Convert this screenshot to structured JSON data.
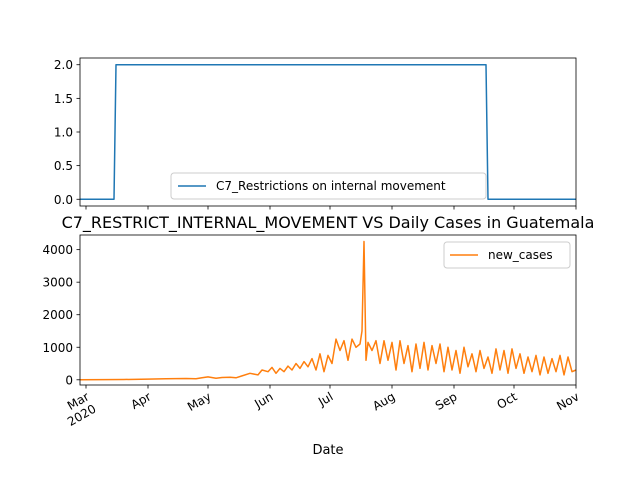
{
  "chart_data": [
    {
      "type": "line",
      "title": "",
      "xlabel": "",
      "ylabel": "",
      "ylim": [
        -0.1,
        2.1
      ],
      "yticks": [
        "0.0",
        "0.5",
        "1.0",
        "1.5",
        "2.0"
      ],
      "ytick_values": [
        0,
        0.5,
        1.0,
        1.5,
        2.0
      ],
      "grid": false,
      "legend": "lower center",
      "series": [
        {
          "name": "C7_Restrictions on internal movement",
          "color": "#1f77b4",
          "x": [
            "2020-02-27",
            "2020-03-15",
            "2020-03-16",
            "2020-09-17",
            "2020-09-18",
            "2020-11-01"
          ],
          "values": [
            0,
            0,
            2,
            2,
            0,
            0
          ]
        }
      ]
    },
    {
      "type": "line",
      "title": "C7_RESTRICT_INTERNAL_MOVEMENT VS Daily Cases in Guatemala",
      "xlabel": "Date",
      "ylabel": "",
      "xlim": [
        "2020-02-27",
        "2020-11-01"
      ],
      "ylim": [
        -160,
        4450
      ],
      "yticks": [
        "0",
        "1000",
        "2000",
        "3000",
        "4000"
      ],
      "ytick_values": [
        0,
        1000,
        2000,
        3000,
        4000
      ],
      "xticks": [
        "Mar\n2020",
        "Apr",
        "May",
        "Jun",
        "Jul",
        "Aug",
        "Sep",
        "Oct",
        "Nov"
      ],
      "xtick_dates": [
        "2020-03-01",
        "2020-04-01",
        "2020-05-01",
        "2020-06-01",
        "2020-07-01",
        "2020-08-01",
        "2020-09-01",
        "2020-10-01",
        "2020-11-01"
      ],
      "grid": false,
      "legend": "upper right",
      "series": [
        {
          "name": "new_cases",
          "color": "#ff7f0e",
          "x": [
            "2020-02-27",
            "2020-03-10",
            "2020-03-20",
            "2020-04-01",
            "2020-04-10",
            "2020-04-20",
            "2020-04-25",
            "2020-04-28",
            "2020-05-01",
            "2020-05-05",
            "2020-05-08",
            "2020-05-12",
            "2020-05-15",
            "2020-05-18",
            "2020-05-22",
            "2020-05-26",
            "2020-05-28",
            "2020-05-31",
            "2020-06-02",
            "2020-06-04",
            "2020-06-06",
            "2020-06-08",
            "2020-06-10",
            "2020-06-12",
            "2020-06-14",
            "2020-06-16",
            "2020-06-18",
            "2020-06-20",
            "2020-06-22",
            "2020-06-24",
            "2020-06-26",
            "2020-06-28",
            "2020-06-30",
            "2020-07-02",
            "2020-07-04",
            "2020-07-06",
            "2020-07-08",
            "2020-07-10",
            "2020-07-12",
            "2020-07-14",
            "2020-07-16",
            "2020-07-17",
            "2020-07-18",
            "2020-07-19",
            "2020-07-20",
            "2020-07-22",
            "2020-07-24",
            "2020-07-26",
            "2020-07-28",
            "2020-07-30",
            "2020-08-01",
            "2020-08-03",
            "2020-08-05",
            "2020-08-07",
            "2020-08-09",
            "2020-08-11",
            "2020-08-13",
            "2020-08-15",
            "2020-08-17",
            "2020-08-19",
            "2020-08-21",
            "2020-08-23",
            "2020-08-25",
            "2020-08-27",
            "2020-08-29",
            "2020-08-31",
            "2020-09-02",
            "2020-09-04",
            "2020-09-06",
            "2020-09-08",
            "2020-09-10",
            "2020-09-12",
            "2020-09-14",
            "2020-09-16",
            "2020-09-18",
            "2020-09-20",
            "2020-09-22",
            "2020-09-24",
            "2020-09-26",
            "2020-09-28",
            "2020-09-30",
            "2020-10-02",
            "2020-10-04",
            "2020-10-06",
            "2020-10-08",
            "2020-10-10",
            "2020-10-12",
            "2020-10-14",
            "2020-10-16",
            "2020-10-18",
            "2020-10-20",
            "2020-10-22",
            "2020-10-24",
            "2020-10-26",
            "2020-10-28",
            "2020-10-30",
            "2020-11-01"
          ],
          "values": [
            0,
            5,
            10,
            20,
            30,
            40,
            30,
            60,
            90,
            50,
            70,
            80,
            60,
            120,
            200,
            150,
            300,
            250,
            380,
            200,
            350,
            250,
            420,
            300,
            500,
            350,
            560,
            400,
            650,
            300,
            800,
            250,
            750,
            500,
            1250,
            900,
            1200,
            600,
            1250,
            1000,
            1100,
            1500,
            4250,
            600,
            1150,
            900,
            1200,
            500,
            1200,
            600,
            1150,
            300,
            1200,
            500,
            1050,
            250,
            1100,
            350,
            1150,
            300,
            1050,
            500,
            1100,
            250,
            1000,
            300,
            900,
            200,
            1000,
            400,
            800,
            250,
            900,
            350,
            700,
            200,
            950,
            300,
            900,
            200,
            950,
            350,
            800,
            200,
            700,
            250,
            750,
            150,
            700,
            200,
            650,
            250,
            750,
            150,
            700,
            250,
            300
          ]
        }
      ]
    }
  ]
}
